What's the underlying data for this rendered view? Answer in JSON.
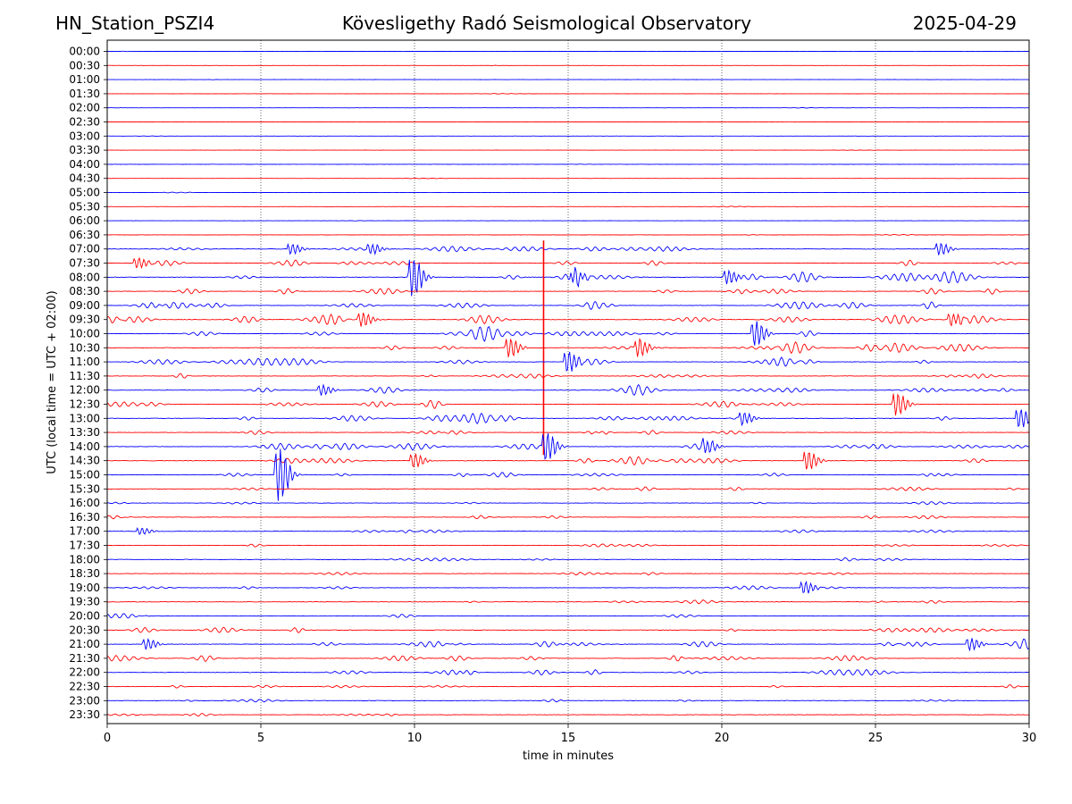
{
  "header": {
    "station": "HN_Station_PSZI4",
    "title": "Kövesligethy Radó Seismological Observatory",
    "date": "2025-04-29"
  },
  "chart_data": {
    "type": "line",
    "title": "Kövesligethy Radó Seismological Observatory",
    "xlabel": "time in minutes",
    "ylabel": "UTC (local time = UTC + 02:00)",
    "xlim": [
      0,
      30
    ],
    "xticks": [
      0,
      5,
      10,
      15,
      20,
      25,
      30
    ],
    "xtick_labels": [
      "0",
      "5",
      "10",
      "15",
      "20",
      "25",
      "30"
    ],
    "vertical_grid_at": [
      5,
      10,
      15,
      20,
      25
    ],
    "grid": "vertical dotted",
    "series_colors": [
      "#0000ff",
      "#ff0000"
    ],
    "row_labels": [
      "00:00",
      "00:30",
      "01:00",
      "01:30",
      "02:00",
      "02:30",
      "03:00",
      "03:30",
      "04:00",
      "04:30",
      "05:00",
      "05:30",
      "06:00",
      "06:30",
      "07:00",
      "07:30",
      "08:00",
      "08:30",
      "09:00",
      "09:30",
      "10:00",
      "10:30",
      "11:00",
      "11:30",
      "12:00",
      "12:30",
      "13:00",
      "13:30",
      "14:00",
      "14:30",
      "15:00",
      "15:30",
      "16:00",
      "16:30",
      "17:00",
      "17:30",
      "18:00",
      "18:30",
      "19:00",
      "19:30",
      "20:00",
      "20:30",
      "21:00",
      "21:30",
      "22:00",
      "22:30",
      "23:00",
      "23:30"
    ],
    "activity": [
      0.3,
      0.3,
      0.3,
      0.3,
      0.3,
      0.3,
      0.3,
      0.3,
      0.4,
      0.3,
      0.4,
      0.4,
      0.4,
      0.5,
      2.5,
      3,
      3.5,
      3,
      3.5,
      4,
      3.5,
      3.5,
      3.5,
      2.5,
      3,
      3,
      3.5,
      2.5,
      3.5,
      3,
      2.5,
      2,
      1.5,
      2,
      1.8,
      1.5,
      1.5,
      1.5,
      1.8,
      1.8,
      2,
      2.5,
      3.5,
      3,
      3,
      2,
      1.5,
      1.5
    ],
    "events": [
      {
        "row": "07:00",
        "minute": 6.0,
        "amplitude": 6
      },
      {
        "row": "07:00",
        "minute": 8.6,
        "amplitude": 6
      },
      {
        "row": "07:00",
        "minute": 27.1,
        "amplitude": 7
      },
      {
        "row": "07:30",
        "minute": 1.0,
        "amplitude": 6
      },
      {
        "row": "08:00",
        "minute": 9.95,
        "amplitude": 22
      },
      {
        "row": "08:00",
        "minute": 15.2,
        "amplitude": 9
      },
      {
        "row": "08:00",
        "minute": 20.2,
        "amplitude": 8
      },
      {
        "row": "09:30",
        "minute": 8.3,
        "amplitude": 8
      },
      {
        "row": "09:30",
        "minute": 27.5,
        "amplitude": 7
      },
      {
        "row": "10:00",
        "minute": 21.1,
        "amplitude": 14
      },
      {
        "row": "10:30",
        "minute": 13.1,
        "amplitude": 11
      },
      {
        "row": "10:30",
        "minute": 17.3,
        "amplitude": 10
      },
      {
        "row": "10:30",
        "minute": 14.2,
        "amplitude": 120
      },
      {
        "row": "11:00",
        "minute": 15.0,
        "amplitude": 12
      },
      {
        "row": "12:00",
        "minute": 7.0,
        "amplitude": 6
      },
      {
        "row": "12:30",
        "minute": 25.7,
        "amplitude": 13
      },
      {
        "row": "13:00",
        "minute": 20.7,
        "amplitude": 7
      },
      {
        "row": "13:00",
        "minute": 29.7,
        "amplitude": 11
      },
      {
        "row": "14:00",
        "minute": 14.3,
        "amplitude": 16
      },
      {
        "row": "14:00",
        "minute": 19.5,
        "amplitude": 8
      },
      {
        "row": "14:30",
        "minute": 22.8,
        "amplitude": 11
      },
      {
        "row": "14:30",
        "minute": 10.0,
        "amplitude": 8
      },
      {
        "row": "15:00",
        "minute": 5.6,
        "amplitude": 30
      },
      {
        "row": "17:00",
        "minute": 1.1,
        "amplitude": 4
      },
      {
        "row": "19:00",
        "minute": 22.7,
        "amplitude": 7
      },
      {
        "row": "21:00",
        "minute": 28.1,
        "amplitude": 7
      },
      {
        "row": "21:00",
        "minute": 1.3,
        "amplitude": 6
      }
    ]
  }
}
